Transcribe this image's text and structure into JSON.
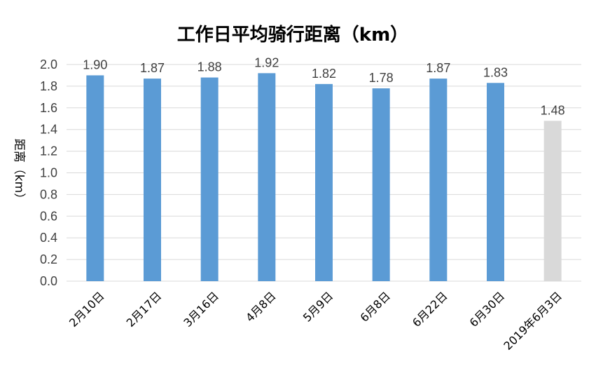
{
  "chart_data": {
    "type": "bar",
    "title": "工作日平均骑行距离（km）",
    "ylabel": "距离（km）",
    "xlabel": "",
    "categories": [
      "2月10日",
      "2月17日",
      "3月16日",
      "4月8日",
      "5月9日",
      "6月8日",
      "6月22日",
      "6月30日",
      "2019年6月3日"
    ],
    "values": [
      1.9,
      1.87,
      1.88,
      1.92,
      1.82,
      1.78,
      1.87,
      1.83,
      1.48
    ],
    "data_labels": [
      "1.90",
      "1.87",
      "1.88",
      "1.92",
      "1.82",
      "1.78",
      "1.87",
      "1.83",
      "1.48"
    ],
    "ylim": [
      0,
      2.0
    ],
    "yticks": [
      0.0,
      0.2,
      0.4,
      0.6,
      0.8,
      1.0,
      1.2,
      1.4,
      1.6,
      1.8,
      2.0
    ],
    "ytick_labels": [
      "0.0",
      "0.2",
      "0.4",
      "0.6",
      "0.8",
      "1.0",
      "1.2",
      "1.4",
      "1.6",
      "1.8",
      "2.0"
    ],
    "grid": true,
    "legend": "none",
    "colors": {
      "bar": "#5b9bd5",
      "highlight_bar": "#d9d9d9",
      "grid": "#d9d9d9"
    },
    "highlight_index": 8
  }
}
